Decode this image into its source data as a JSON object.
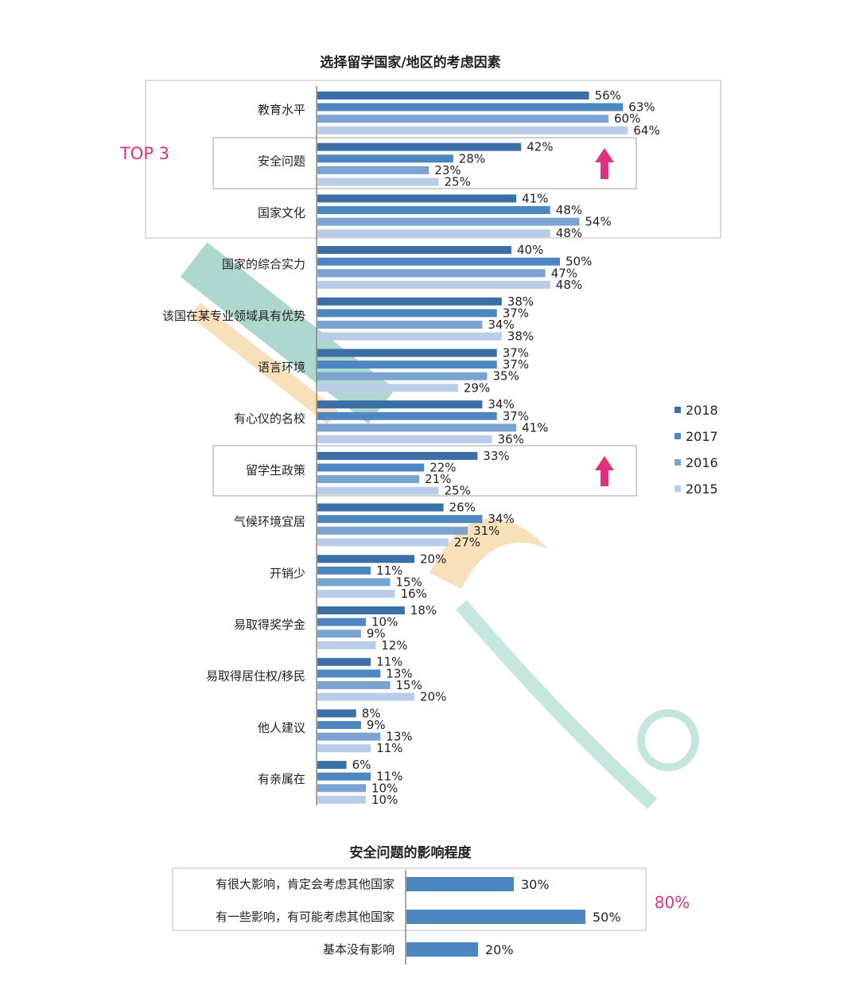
{
  "chart_data": [
    {
      "type": "bar",
      "orientation": "horizontal",
      "title": "选择留学国家/地区的考虑因素",
      "categories": [
        "教育水平",
        "安全问题",
        "国家文化",
        "国家的综合实力",
        "该国在某专业领域具有优势",
        "语言环境",
        "有心仪的名校",
        "留学生政策",
        "气候环境宜居",
        "开销少",
        "易取得奖学金",
        "易取得居住权/移民",
        "他人建议",
        "有亲属在"
      ],
      "series": [
        {
          "name": "2018",
          "color": "#3b6fa6",
          "values": [
            56,
            42,
            41,
            40,
            38,
            37,
            34,
            33,
            26,
            20,
            18,
            11,
            8,
            6
          ]
        },
        {
          "name": "2017",
          "color": "#4d86c1",
          "values": [
            63,
            28,
            48,
            50,
            37,
            37,
            37,
            22,
            34,
            11,
            10,
            13,
            9,
            11
          ]
        },
        {
          "name": "2016",
          "color": "#7ba3d2",
          "values": [
            60,
            23,
            54,
            47,
            34,
            35,
            41,
            21,
            31,
            15,
            9,
            15,
            13,
            10
          ]
        },
        {
          "name": "2015",
          "color": "#b9cde8",
          "values": [
            64,
            25,
            48,
            48,
            38,
            29,
            36,
            25,
            27,
            16,
            12,
            20,
            11,
            10
          ]
        }
      ],
      "value_suffix": "%",
      "legend_position": "right",
      "grid": false,
      "top_label": "TOP 3"
    },
    {
      "type": "bar",
      "orientation": "horizontal",
      "title": "安全问题的影响程度",
      "categories": [
        "有很大影响，肯定会考虑其他国家",
        "有一些影响，有可能考虑其他国家",
        "基本没有影响"
      ],
      "values": [
        30,
        50,
        20
      ],
      "value_suffix": "%",
      "color": "#4d86c1",
      "total_label": "80%"
    }
  ],
  "colors": {
    "accent": "#e0317f",
    "frame": "#c8c8c8",
    "text": "#222222",
    "axis": "#777777"
  },
  "icons": {
    "up_arrow": "up-arrow-icon",
    "watermark_left": "watermark-xdf",
    "watermark_right": "watermark-vision-overseas"
  }
}
